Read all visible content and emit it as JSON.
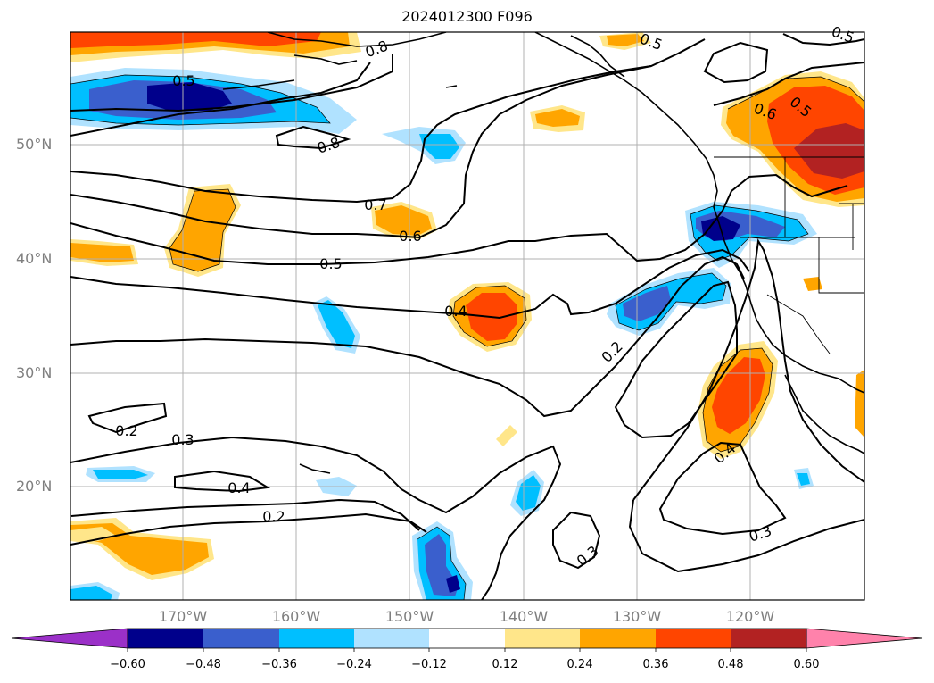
{
  "title": "2024012300 F096",
  "lat_labels": [
    "50°N",
    "40°N",
    "30°N",
    "20°N"
  ],
  "lon_labels": [
    "170°W",
    "160°W",
    "150°W",
    "140°W",
    "130°W",
    "120°W"
  ],
  "contour_labels": [
    "0.5",
    "0.8",
    "0.8",
    "0.7",
    "0.6",
    "0.5",
    "0.4",
    "0.2",
    "0.3",
    "0.2",
    "0.4",
    "0.2",
    "0.3",
    "0.3",
    "0.4",
    "0.6",
    "0.5",
    "0.5",
    "0.5"
  ],
  "colorbar": {
    "tick_labels": [
      "−0.60",
      "−0.48",
      "−0.36",
      "−0.24",
      "−0.12",
      "0.12",
      "0.24",
      "0.36",
      "0.48",
      "0.60"
    ],
    "colors": [
      "#9b30c8",
      "#00008b",
      "#3a5fcd",
      "#00bfff",
      "#b0e2ff",
      "#ffffff",
      "#ffe68a",
      "#ffa500",
      "#ff4500",
      "#b22222",
      "#ff82ab"
    ]
  }
}
